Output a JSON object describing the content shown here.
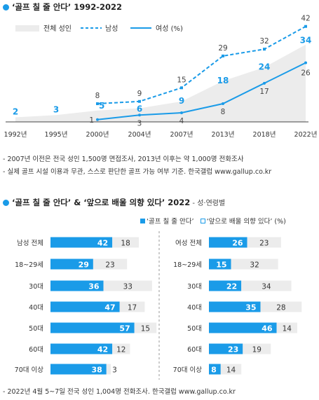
{
  "chart1": {
    "title": "‘골프 칠 줄 안다’ 1992-2022",
    "legend": {
      "all": "전체 성인",
      "men": "남성",
      "women": "여성 (%)"
    },
    "notes": [
      "- 2007년 이전은 전국 성인 1,500명 면접조사, 2013년 이후는 약 1,000명 전화조사",
      "- 실제 골프 시설 이용과 무관, 스스로 판단한 골프 가능 여부 기준. 한국갤럽 www.gallup.co.kr"
    ]
  },
  "chart2": {
    "title": "‘골프 칠 줄 안다’ & ‘앞으로 배울 의향 있다’ 2022",
    "subtitle": " - 성·연령별",
    "legend_can": "‘골프 칠 줄 안다’",
    "legend_will": "‘앞으로 배울 의향 있다’ (%)",
    "note": "- 2022년 4월 5~7일 전국 성인 1,004명 전화조사. 한국갤럽 www.gallup.co.kr"
  },
  "chart_data": [
    {
      "type": "line",
      "x": [
        "1992년",
        "1995년",
        "2000년",
        "2004년",
        "2007년",
        "2013년",
        "2018년",
        "2022년"
      ],
      "series": [
        {
          "name": "전체 성인",
          "kind": "area",
          "values": [
            2,
            3,
            5,
            6,
            9,
            18,
            24,
            34
          ]
        },
        {
          "name": "남성",
          "kind": "dashed",
          "values": [
            null,
            null,
            8,
            9,
            15,
            29,
            32,
            42
          ]
        },
        {
          "name": "여성 (%)",
          "kind": "solid",
          "values": [
            null,
            null,
            1,
            3,
            4,
            8,
            17,
            26
          ]
        }
      ],
      "ylim": [
        0,
        45
      ],
      "colors": {
        "area": "#ececec",
        "line": "#1a9be8",
        "label_gray": "#444444"
      }
    },
    {
      "type": "bar",
      "stacked": true,
      "groups": [
        {
          "name": "남성",
          "categories": [
            "남성 전체",
            "18~29세",
            "30대",
            "40대",
            "50대",
            "60대",
            "70대 이상"
          ],
          "series": [
            {
              "name": "‘골프 칠 줄 안다’",
              "values": [
                42,
                29,
                36,
                47,
                57,
                42,
                38
              ]
            },
            {
              "name": "‘앞으로 배울 의향 있다’ (%)",
              "values": [
                18,
                23,
                33,
                17,
                15,
                12,
                3
              ]
            }
          ]
        },
        {
          "name": "여성",
          "categories": [
            "여성 전체",
            "18~29세",
            "30대",
            "40대",
            "50대",
            "60대",
            "70대 이상"
          ],
          "series": [
            {
              "name": "‘골프 칠 줄 안다’",
              "values": [
                26,
                15,
                22,
                35,
                46,
                23,
                8
              ]
            },
            {
              "name": "‘앞으로 배울 의향 있다’ (%)",
              "values": [
                23,
                32,
                34,
                28,
                14,
                19,
                14
              ]
            }
          ]
        }
      ],
      "colors": {
        "can": "#1a9be8",
        "will": "#ececec"
      }
    }
  ]
}
